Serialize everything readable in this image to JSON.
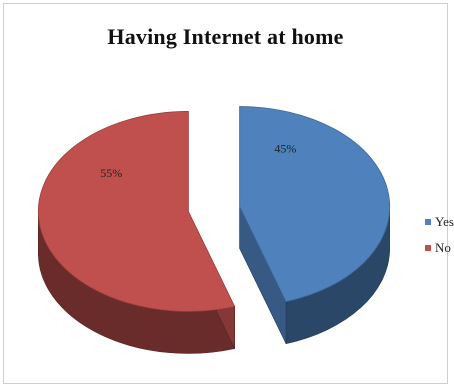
{
  "chart_data": {
    "type": "pie",
    "title": "Having  Internet at home",
    "categories": [
      "Yes",
      "No"
    ],
    "values": [
      45,
      55
    ],
    "value_labels": [
      "45%",
      "55%"
    ],
    "colors": [
      "#4F81BD",
      "#C0504D"
    ],
    "exploded": true,
    "style": "3d",
    "legend_position": "right"
  }
}
